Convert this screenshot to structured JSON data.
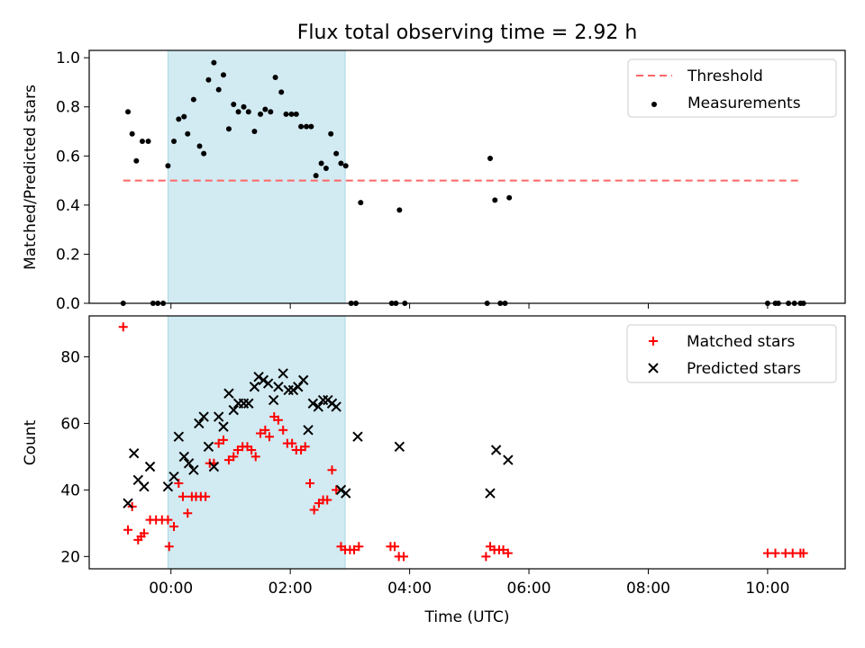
{
  "title": "Flux total observing time = 2.92 h",
  "xlabel": "Time (UTC)",
  "x_ticks": [
    "00:00",
    "02:00",
    "04:00",
    "06:00",
    "08:00",
    "10:00"
  ],
  "colors": {
    "shade": "#add8e6",
    "threshold": "#ff6666",
    "measurements": "#000000",
    "matched": "#ff0000",
    "predicted": "#000000"
  },
  "chart_data": [
    {
      "type": "scatter",
      "ylabel": "Matched/Predicted stars",
      "x_unit": "hours since 00:00 UTC",
      "xlim": [
        -1.37,
        11.3
      ],
      "ylim": [
        0,
        1.03
      ],
      "y_ticks": [
        "0.0",
        "0.2",
        "0.4",
        "0.6",
        "0.8",
        "1.0"
      ],
      "grid": false,
      "legend": "top-right",
      "shaded_span": [
        -0.05,
        2.92
      ],
      "threshold": {
        "name": "Threshold",
        "y": 0.5,
        "x": [
          -0.8,
          10.55
        ]
      },
      "series": [
        {
          "name": "Measurements",
          "marker": "dot",
          "points": [
            [
              -0.8,
              0.0
            ],
            [
              -0.72,
              0.78
            ],
            [
              -0.65,
              0.69
            ],
            [
              -0.58,
              0.58
            ],
            [
              -0.48,
              0.66
            ],
            [
              -0.38,
              0.66
            ],
            [
              -0.3,
              0.0
            ],
            [
              -0.22,
              0.0
            ],
            [
              -0.13,
              0.0
            ],
            [
              -0.05,
              0.56
            ],
            [
              0.05,
              0.66
            ],
            [
              0.13,
              0.75
            ],
            [
              0.22,
              0.76
            ],
            [
              0.28,
              0.69
            ],
            [
              0.38,
              0.83
            ],
            [
              0.48,
              0.64
            ],
            [
              0.55,
              0.61
            ],
            [
              0.63,
              0.91
            ],
            [
              0.72,
              0.98
            ],
            [
              0.8,
              0.87
            ],
            [
              0.88,
              0.93
            ],
            [
              0.97,
              0.71
            ],
            [
              1.05,
              0.81
            ],
            [
              1.13,
              0.78
            ],
            [
              1.22,
              0.8
            ],
            [
              1.3,
              0.78
            ],
            [
              1.4,
              0.7
            ],
            [
              1.5,
              0.77
            ],
            [
              1.58,
              0.79
            ],
            [
              1.67,
              0.78
            ],
            [
              1.75,
              0.92
            ],
            [
              1.85,
              0.86
            ],
            [
              1.93,
              0.77
            ],
            [
              2.02,
              0.77
            ],
            [
              2.1,
              0.77
            ],
            [
              2.18,
              0.72
            ],
            [
              2.27,
              0.72
            ],
            [
              2.35,
              0.72
            ],
            [
              2.43,
              0.52
            ],
            [
              2.52,
              0.57
            ],
            [
              2.6,
              0.55
            ],
            [
              2.68,
              0.69
            ],
            [
              2.77,
              0.61
            ],
            [
              2.85,
              0.57
            ],
            [
              2.93,
              0.56
            ],
            [
              3.02,
              0.0
            ],
            [
              3.1,
              0.0
            ],
            [
              3.18,
              0.41
            ],
            [
              3.7,
              0.0
            ],
            [
              3.77,
              0.0
            ],
            [
              3.83,
              0.38
            ],
            [
              3.92,
              0.0
            ],
            [
              5.3,
              0.0
            ],
            [
              5.35,
              0.59
            ],
            [
              5.43,
              0.42
            ],
            [
              5.52,
              0.0
            ],
            [
              5.6,
              0.0
            ],
            [
              5.67,
              0.43
            ],
            [
              10.0,
              0.0
            ],
            [
              10.13,
              0.0
            ],
            [
              10.18,
              0.0
            ],
            [
              10.35,
              0.0
            ],
            [
              10.45,
              0.0
            ],
            [
              10.55,
              0.0
            ],
            [
              10.6,
              0.0
            ]
          ]
        }
      ]
    },
    {
      "type": "scatter",
      "ylabel": "Count",
      "x_unit": "hours since 00:00 UTC",
      "xlim": [
        -1.37,
        11.3
      ],
      "ylim": [
        16.3,
        92.3
      ],
      "y_ticks": [
        "20",
        "40",
        "60",
        "80"
      ],
      "grid": false,
      "legend": "top-right",
      "shaded_span": [
        -0.05,
        2.92
      ],
      "series": [
        {
          "name": "Matched stars",
          "marker": "plus",
          "points": [
            [
              -0.8,
              89
            ],
            [
              -0.72,
              28
            ],
            [
              -0.65,
              35
            ],
            [
              -0.55,
              25
            ],
            [
              -0.5,
              26
            ],
            [
              -0.45,
              27
            ],
            [
              -0.35,
              31
            ],
            [
              -0.25,
              31
            ],
            [
              -0.15,
              31
            ],
            [
              -0.05,
              31
            ],
            [
              -0.03,
              23
            ],
            [
              0.05,
              29
            ],
            [
              0.13,
              42
            ],
            [
              0.2,
              38
            ],
            [
              0.28,
              33
            ],
            [
              0.35,
              38
            ],
            [
              0.42,
              38
            ],
            [
              0.5,
              38
            ],
            [
              0.58,
              38
            ],
            [
              0.65,
              48
            ],
            [
              0.72,
              48
            ],
            [
              0.8,
              54
            ],
            [
              0.88,
              55
            ],
            [
              0.97,
              49
            ],
            [
              1.05,
              50
            ],
            [
              1.12,
              52
            ],
            [
              1.2,
              53
            ],
            [
              1.28,
              53
            ],
            [
              1.35,
              52
            ],
            [
              1.42,
              50
            ],
            [
              1.5,
              57
            ],
            [
              1.58,
              58
            ],
            [
              1.65,
              56
            ],
            [
              1.73,
              62
            ],
            [
              1.8,
              61
            ],
            [
              1.88,
              58
            ],
            [
              1.95,
              54
            ],
            [
              2.03,
              54
            ],
            [
              2.1,
              52
            ],
            [
              2.18,
              52
            ],
            [
              2.25,
              53
            ],
            [
              2.33,
              42
            ],
            [
              2.4,
              34
            ],
            [
              2.48,
              36
            ],
            [
              2.55,
              37
            ],
            [
              2.62,
              37
            ],
            [
              2.7,
              46
            ],
            [
              2.77,
              40
            ],
            [
              2.85,
              23
            ],
            [
              2.92,
              22
            ],
            [
              3.0,
              22
            ],
            [
              3.07,
              22
            ],
            [
              3.15,
              23
            ],
            [
              3.68,
              23
            ],
            [
              3.75,
              23
            ],
            [
              3.82,
              20
            ],
            [
              3.9,
              20
            ],
            [
              5.28,
              20
            ],
            [
              5.35,
              23
            ],
            [
              5.42,
              22
            ],
            [
              5.5,
              22
            ],
            [
              5.57,
              22
            ],
            [
              5.65,
              21
            ],
            [
              10.0,
              21
            ],
            [
              10.13,
              21
            ],
            [
              10.3,
              21
            ],
            [
              10.42,
              21
            ],
            [
              10.55,
              21
            ],
            [
              10.6,
              21
            ]
          ]
        },
        {
          "name": "Predicted stars",
          "marker": "x",
          "points": [
            [
              -0.72,
              36
            ],
            [
              -0.62,
              51
            ],
            [
              -0.55,
              43
            ],
            [
              -0.45,
              41
            ],
            [
              -0.35,
              47
            ],
            [
              -0.05,
              41
            ],
            [
              0.05,
              44
            ],
            [
              0.13,
              56
            ],
            [
              0.22,
              50
            ],
            [
              0.3,
              48
            ],
            [
              0.38,
              46
            ],
            [
              0.47,
              60
            ],
            [
              0.55,
              62
            ],
            [
              0.63,
              53
            ],
            [
              0.72,
              47
            ],
            [
              0.8,
              62
            ],
            [
              0.88,
              59
            ],
            [
              0.97,
              69
            ],
            [
              1.05,
              64
            ],
            [
              1.13,
              66
            ],
            [
              1.22,
              66
            ],
            [
              1.3,
              66
            ],
            [
              1.4,
              71
            ],
            [
              1.47,
              74
            ],
            [
              1.55,
              73
            ],
            [
              1.63,
              72
            ],
            [
              1.72,
              67
            ],
            [
              1.8,
              71
            ],
            [
              1.88,
              75
            ],
            [
              1.97,
              70
            ],
            [
              2.05,
              70
            ],
            [
              2.13,
              71
            ],
            [
              2.22,
              73
            ],
            [
              2.3,
              58
            ],
            [
              2.38,
              66
            ],
            [
              2.47,
              65
            ],
            [
              2.55,
              67
            ],
            [
              2.63,
              67
            ],
            [
              2.7,
              66
            ],
            [
              2.77,
              65
            ],
            [
              2.85,
              40
            ],
            [
              2.93,
              39
            ],
            [
              3.13,
              56
            ],
            [
              3.83,
              53
            ],
            [
              5.35,
              39
            ],
            [
              5.45,
              52
            ],
            [
              5.65,
              49
            ]
          ]
        }
      ]
    }
  ]
}
